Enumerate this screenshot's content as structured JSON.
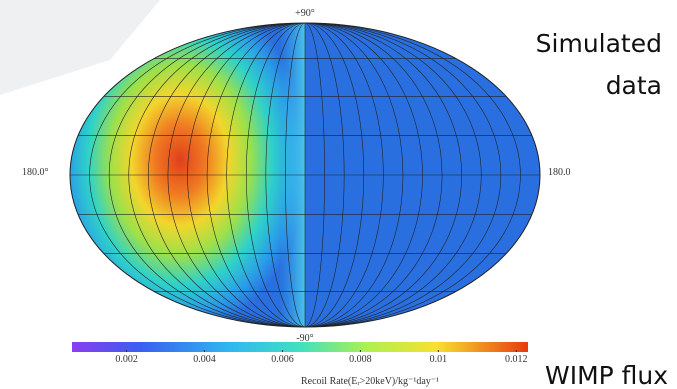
{
  "chart_data": {
    "type": "skymap",
    "labels": {
      "top": "+90°",
      "bottom": "-90°",
      "left": "180.0°",
      "right": "180.0"
    },
    "colorbar": {
      "clim": [
        0.0006,
        0.0123
      ],
      "ticks": [
        0.002,
        0.004,
        0.006,
        0.008,
        0.01,
        0.012
      ],
      "label": "Recoil Rate(Eᵣ>20keV)/kg⁻¹day⁻¹"
    },
    "annotations": [
      "Simulated",
      "data",
      "WIMP flux"
    ]
  }
}
